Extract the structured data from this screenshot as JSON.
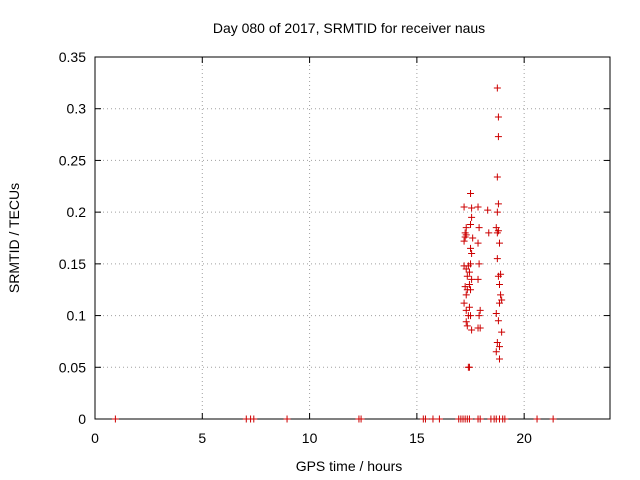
{
  "chart_data": {
    "type": "scatter",
    "title": "Day 080 of 2017, SRMTID for receiver naus",
    "xlabel": "GPS time / hours",
    "ylabel": "SRMTID / TECUs",
    "xlim": [
      0,
      24
    ],
    "ylim": [
      0,
      0.35
    ],
    "xticks": [
      0,
      5,
      10,
      15,
      20
    ],
    "xtick_labels": [
      "0",
      "5",
      "10",
      "15",
      "20"
    ],
    "yticks": [
      0,
      0.05,
      0.1,
      0.15,
      0.2,
      0.25,
      0.3,
      0.35
    ],
    "ytick_labels": [
      "0",
      "0.05",
      "0.1",
      "0.15",
      "0.2",
      "0.25",
      "0.3",
      "0.35"
    ],
    "grid": true,
    "marker": "+",
    "marker_color": "#cc0000",
    "series": [
      {
        "name": "SRMTID",
        "points": [
          [
            0.95,
            0
          ],
          [
            7.05,
            0
          ],
          [
            7.25,
            0
          ],
          [
            7.4,
            0
          ],
          [
            8.95,
            0
          ],
          [
            12.3,
            0
          ],
          [
            12.4,
            0
          ],
          [
            15.3,
            0
          ],
          [
            15.4,
            0
          ],
          [
            15.75,
            0
          ],
          [
            16.05,
            0
          ],
          [
            16.95,
            0
          ],
          [
            17.05,
            0
          ],
          [
            17.15,
            0
          ],
          [
            17.25,
            0
          ],
          [
            17.35,
            0
          ],
          [
            17.45,
            0
          ],
          [
            17.85,
            0
          ],
          [
            17.95,
            0
          ],
          [
            18.45,
            0
          ],
          [
            18.6,
            0
          ],
          [
            18.7,
            0
          ],
          [
            18.85,
            0
          ],
          [
            19.0,
            0
          ],
          [
            19.1,
            0
          ],
          [
            20.6,
            0
          ],
          [
            21.35,
            0
          ],
          [
            17.2,
            0.205
          ],
          [
            17.25,
            0.18
          ],
          [
            17.2,
            0.172
          ],
          [
            17.3,
            0.185
          ],
          [
            17.25,
            0.176
          ],
          [
            17.3,
            0.178
          ],
          [
            17.2,
            0.148
          ],
          [
            17.3,
            0.145
          ],
          [
            17.35,
            0.138
          ],
          [
            17.25,
            0.128
          ],
          [
            17.3,
            0.12
          ],
          [
            17.35,
            0.125
          ],
          [
            17.2,
            0.112
          ],
          [
            17.3,
            0.105
          ],
          [
            17.4,
            0.1
          ],
          [
            17.3,
            0.094
          ],
          [
            17.35,
            0.09
          ],
          [
            17.4,
            0.05
          ],
          [
            17.45,
            0.05
          ],
          [
            17.5,
            0.218
          ],
          [
            17.55,
            0.204
          ],
          [
            17.55,
            0.195
          ],
          [
            17.5,
            0.188
          ],
          [
            17.6,
            0.175
          ],
          [
            17.5,
            0.165
          ],
          [
            17.55,
            0.16
          ],
          [
            17.5,
            0.15
          ],
          [
            17.45,
            0.142
          ],
          [
            17.55,
            0.135
          ],
          [
            17.45,
            0.13
          ],
          [
            17.5,
            0.125
          ],
          [
            17.45,
            0.108
          ],
          [
            17.5,
            0.1
          ],
          [
            17.55,
            0.086
          ],
          [
            17.4,
            0.148
          ],
          [
            17.85,
            0.205
          ],
          [
            17.9,
            0.185
          ],
          [
            17.85,
            0.17
          ],
          [
            17.9,
            0.15
          ],
          [
            17.85,
            0.135
          ],
          [
            17.95,
            0.105
          ],
          [
            17.9,
            0.1
          ],
          [
            17.85,
            0.088
          ],
          [
            17.95,
            0.088
          ],
          [
            18.3,
            0.202
          ],
          [
            18.35,
            0.18
          ],
          [
            18.75,
            0.32
          ],
          [
            18.8,
            0.292
          ],
          [
            18.8,
            0.273
          ],
          [
            18.75,
            0.234
          ],
          [
            18.8,
            0.208
          ],
          [
            18.75,
            0.2
          ],
          [
            18.7,
            0.185
          ],
          [
            18.8,
            0.182
          ],
          [
            18.75,
            0.18
          ],
          [
            18.85,
            0.17
          ],
          [
            18.75,
            0.155
          ],
          [
            18.9,
            0.14
          ],
          [
            18.8,
            0.138
          ],
          [
            18.85,
            0.13
          ],
          [
            18.9,
            0.12
          ],
          [
            18.95,
            0.115
          ],
          [
            18.85,
            0.112
          ],
          [
            18.7,
            0.102
          ],
          [
            18.8,
            0.095
          ],
          [
            18.95,
            0.084
          ],
          [
            18.75,
            0.074
          ],
          [
            18.85,
            0.07
          ],
          [
            18.7,
            0.065
          ],
          [
            18.85,
            0.058
          ]
        ]
      }
    ]
  }
}
